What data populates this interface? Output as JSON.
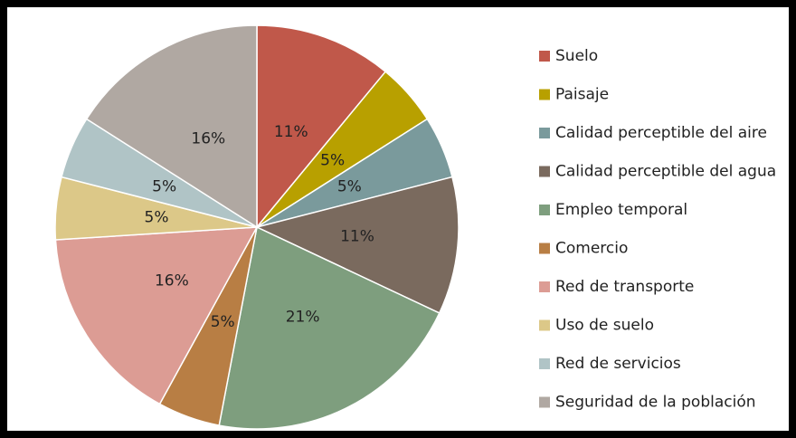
{
  "chart_data": {
    "type": "pie",
    "categories": [
      "Suelo",
      "Paisaje",
      "Calidad perceptible del aire",
      "Calidad perceptible del agua",
      "Empleo temporal",
      "Comercio",
      "Red de transporte",
      "Uso de suelo",
      "Red de servicios",
      "Seguridad de la población"
    ],
    "values": [
      11,
      5,
      5,
      11,
      21,
      5,
      16,
      5,
      5,
      16
    ],
    "value_labels": [
      "11%",
      "5%",
      "5%",
      "11%",
      "21%",
      "5%",
      "16%",
      "5%",
      "5%",
      "16%"
    ],
    "colors": [
      "#c0584a",
      "#b8a000",
      "#7a9a9c",
      "#7a6a5e",
      "#7e9e7e",
      "#b87e44",
      "#dc9c94",
      "#dcc888",
      "#b0c4c6",
      "#b0a8a2"
    ],
    "legend": "right"
  }
}
